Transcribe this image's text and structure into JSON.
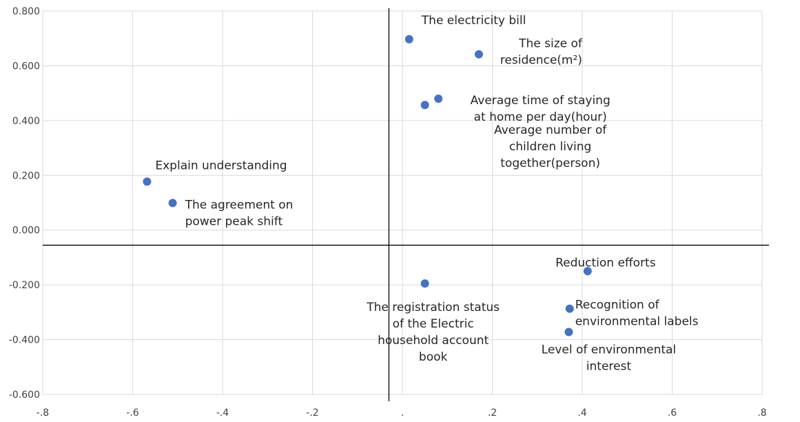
{
  "chart_data": {
    "type": "scatter",
    "title": "",
    "xlabel": "",
    "ylabel": "",
    "xlim": [
      -0.8,
      0.8
    ],
    "ylim": [
      -0.6,
      0.8
    ],
    "grid": true,
    "x_ticks": [
      {
        "value": -0.8,
        "label": "-.8"
      },
      {
        "value": -0.6,
        "label": "-.6"
      },
      {
        "value": -0.4,
        "label": "-.4"
      },
      {
        "value": -0.2,
        "label": "-.2"
      },
      {
        "value": 0.0,
        "label": "."
      },
      {
        "value": 0.2,
        "label": ".2"
      },
      {
        "value": 0.4,
        "label": ".4"
      },
      {
        "value": 0.6,
        "label": ".6"
      },
      {
        "value": 0.8,
        "label": ".8"
      }
    ],
    "y_ticks": [
      {
        "value": 0.8,
        "label": "0.800"
      },
      {
        "value": 0.6,
        "label": "0.600"
      },
      {
        "value": 0.4,
        "label": "0.400"
      },
      {
        "value": 0.2,
        "label": "0.200"
      },
      {
        "value": 0.0,
        "label": "0.000"
      },
      {
        "value": -0.2,
        "label": "-0.200"
      },
      {
        "value": -0.4,
        "label": "-0.400"
      },
      {
        "value": -0.6,
        "label": "-0.600"
      }
    ],
    "cross_axes": {
      "x": -0.03,
      "y": -0.055
    },
    "point_color": "#4472c4",
    "points": [
      {
        "x": -0.568,
        "y": 0.177,
        "label": [
          "Explain understanding"
        ]
      },
      {
        "x": -0.511,
        "y": 0.099,
        "label": [
          "The agreement on",
          "power peak shift"
        ]
      },
      {
        "x": 0.015,
        "y": 0.697,
        "label": [
          "The electricity bill"
        ]
      },
      {
        "x": 0.17,
        "y": 0.642,
        "label": [
          "The size of",
          "residence(m²)"
        ]
      },
      {
        "x": 0.08,
        "y": 0.48,
        "label": [
          "Average time of staying",
          "at home  per day(hour)"
        ]
      },
      {
        "x": 0.05,
        "y": 0.457,
        "label": [
          "Average number  of",
          "children living",
          "together(person)"
        ]
      },
      {
        "x": 0.05,
        "y": -0.195,
        "label": [
          "The registration status",
          "of the Electric",
          "household account",
          "book"
        ]
      },
      {
        "x": 0.412,
        "y": -0.15,
        "label": [
          "Reduction efforts"
        ]
      },
      {
        "x": 0.372,
        "y": -0.287,
        "label": [
          "Recognition of",
          "environmental labels"
        ]
      },
      {
        "x": 0.37,
        "y": -0.372,
        "label": [
          "Level of environmental",
          "interest"
        ]
      }
    ]
  }
}
